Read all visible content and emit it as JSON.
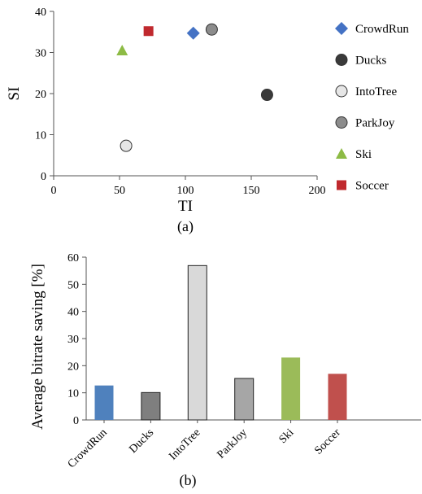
{
  "chart_data": [
    {
      "type": "scatter",
      "xlabel": "TI",
      "ylabel": "SI",
      "caption": "(a)",
      "xlim": [
        0,
        200
      ],
      "ylim": [
        0,
        40
      ],
      "xticks": [
        "0",
        "50",
        "100",
        "150",
        "200"
      ],
      "yticks": [
        "0",
        "10",
        "20",
        "30",
        "40"
      ],
      "legend_position": "right",
      "series": [
        {
          "name": "CrowdRun",
          "marker": "diamond",
          "color": "#4472C4",
          "points": [
            {
              "x": 106,
              "y": 34.7
            }
          ]
        },
        {
          "name": "Ducks",
          "marker": "circle",
          "color": "#3A3A3A",
          "points": [
            {
              "x": 162,
              "y": 19.7
            }
          ]
        },
        {
          "name": "IntoTree",
          "marker": "circle",
          "color": "#E6E6E6",
          "points": [
            {
              "x": 55,
              "y": 7.3
            }
          ]
        },
        {
          "name": "ParkJoy",
          "marker": "circle",
          "color": "#8C8C8C",
          "points": [
            {
              "x": 120,
              "y": 35.6
            }
          ]
        },
        {
          "name": "Ski",
          "marker": "triangle",
          "color": "#8DBB45",
          "points": [
            {
              "x": 52,
              "y": 30.5
            }
          ]
        },
        {
          "name": "Soccer",
          "marker": "square",
          "color": "#C0292E",
          "points": [
            {
              "x": 72,
              "y": 35.2
            }
          ]
        }
      ]
    },
    {
      "type": "bar",
      "ylabel": "Average bitrate saving [%]",
      "caption": "(b)",
      "ylim": [
        0,
        60
      ],
      "yticks": [
        "0",
        "10",
        "20",
        "30",
        "40",
        "50",
        "60"
      ],
      "categories": [
        "CrowdRun",
        "Ducks",
        "IntoTree",
        "ParkJoy",
        "Ski",
        "Soccer"
      ],
      "values": [
        12.7,
        10.1,
        56.9,
        15.3,
        23.0,
        17.0
      ],
      "colors": [
        "#4F81BD",
        "#7F7F7F",
        "#D9D9D9",
        "#A6A6A6",
        "#9BBB59",
        "#C0504D"
      ],
      "outlined": [
        false,
        true,
        true,
        true,
        false,
        false
      ]
    }
  ]
}
